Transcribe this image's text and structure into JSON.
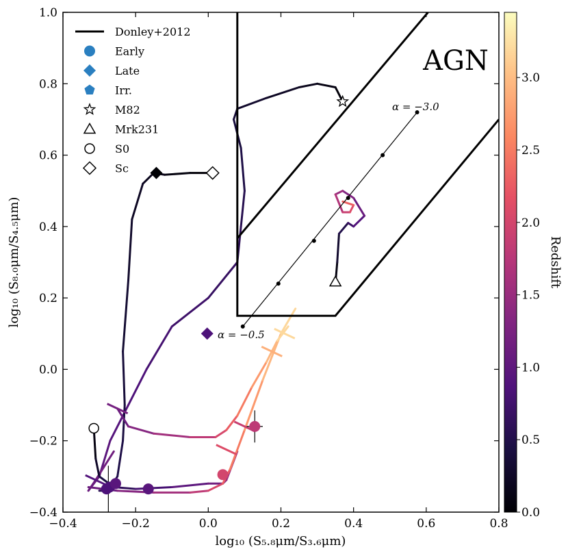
{
  "chart_data": {
    "type": "scatter",
    "xlabel": "log₁₀ (S₅.₈μm/S₃.₆μm)",
    "ylabel": "log₁₀ (S₈.₀μm/S₄.₅μm)",
    "xlim": [
      -0.4,
      0.8
    ],
    "ylim": [
      -0.4,
      1.0
    ],
    "xticks": [
      -0.4,
      -0.2,
      0.0,
      0.2,
      0.4,
      0.6,
      0.8
    ],
    "yticks": [
      -0.4,
      -0.2,
      0.0,
      0.2,
      0.4,
      0.6,
      0.8,
      1.0
    ],
    "xtick_labels": [
      "−0.4",
      "−0.2",
      "0.0",
      "0.2",
      "0.4",
      "0.6",
      "0.8"
    ],
    "ytick_labels": [
      "−0.4",
      "−0.2",
      "0.0",
      "0.2",
      "0.4",
      "0.6",
      "0.8",
      "1.0"
    ],
    "region_label": "AGN",
    "donley_wedge": [
      [
        0.08,
        1.0
      ],
      [
        0.08,
        0.367
      ],
      [
        0.08,
        0.15
      ],
      [
        0.35,
        0.15
      ],
      [
        0.8,
        0.7
      ]
    ],
    "donley_upper": [
      [
        0.08,
        0.367
      ],
      [
        0.605,
        1.0
      ]
    ],
    "colorbar": {
      "label": "Redshift",
      "min": 0.0,
      "max": 3.45,
      "ticks": [
        0.0,
        0.5,
        1.0,
        1.5,
        2.0,
        2.5,
        3.0
      ],
      "tick_labels": [
        "0.0",
        "0.5",
        "1.0",
        "1.5",
        "2.0",
        "2.5",
        "3.0"
      ]
    },
    "legend": [
      {
        "label": "Donley+2012",
        "marker": "line"
      },
      {
        "label": "Early",
        "marker": "circle-filled"
      },
      {
        "label": "Late",
        "marker": "diamond-filled"
      },
      {
        "label": "Irr.",
        "marker": "pentagon-filled"
      },
      {
        "label": "M82",
        "marker": "star-open"
      },
      {
        "label": "Mrk231",
        "marker": "triangle-open"
      },
      {
        "label": "S0",
        "marker": "circle-open"
      },
      {
        "label": "Sc",
        "marker": "diamond-open"
      }
    ],
    "powerlaw": {
      "x": [
        0.095,
        0.193,
        0.291,
        0.385,
        0.48,
        0.575
      ],
      "y": [
        0.12,
        0.24,
        0.36,
        0.48,
        0.6,
        0.72
      ],
      "labels": [
        "α = −0.5",
        "α = −3.0"
      ]
    },
    "tracks": [
      {
        "name": "M82",
        "x": [
          0.37,
          0.35,
          0.3,
          0.25,
          0.16,
          0.08,
          0.07,
          0.09,
          0.1,
          0.09,
          0.08,
          0.0,
          -0.1,
          -0.17,
          -0.22,
          -0.27,
          -0.3,
          -0.33,
          -0.31,
          -0.26
        ],
        "y": [
          0.75,
          0.79,
          0.8,
          0.79,
          0.76,
          0.73,
          0.7,
          0.62,
          0.5,
          0.4,
          0.3,
          0.2,
          0.12,
          0.0,
          -0.1,
          -0.2,
          -0.3,
          -0.34,
          -0.31,
          -0.23
        ],
        "z0": 0.0,
        "z1": 1.2
      },
      {
        "name": "Sc",
        "x": [
          0.01,
          -0.05,
          -0.12,
          -0.15,
          -0.18,
          -0.21,
          -0.22,
          -0.235,
          -0.23,
          -0.235,
          -0.25,
          -0.275,
          -0.3
        ],
        "y": [
          0.55,
          0.55,
          0.545,
          0.55,
          0.52,
          0.42,
          0.25,
          0.05,
          -0.1,
          -0.2,
          -0.3,
          -0.34,
          -0.34
        ],
        "z0": 0.0,
        "z1": 0.6
      },
      {
        "name": "S0",
        "x": [
          -0.315,
          -0.31,
          -0.3,
          -0.26,
          -0.2,
          -0.1,
          0.0,
          0.04,
          0.05,
          0.08
        ],
        "y": [
          -0.165,
          -0.25,
          -0.3,
          -0.33,
          -0.335,
          -0.33,
          -0.32,
          -0.32,
          -0.31,
          -0.23
        ],
        "z0": 0.0,
        "z1": 1.6
      },
      {
        "name": "Irr",
        "x": [
          -0.33,
          -0.25,
          -0.15,
          -0.05,
          0.0,
          0.04,
          0.06,
          0.1,
          0.15,
          0.2,
          0.24
        ],
        "y": [
          -0.33,
          -0.34,
          -0.345,
          -0.345,
          -0.34,
          -0.32,
          -0.28,
          -0.17,
          -0.03,
          0.1,
          0.17
        ],
        "z0": 1.0,
        "z1": 3.3
      },
      {
        "name": "Early",
        "x": [
          -0.25,
          -0.22,
          -0.15,
          -0.05,
          0.02,
          0.05,
          0.08,
          0.12,
          0.16,
          0.19,
          0.22
        ],
        "y": [
          -0.11,
          -0.16,
          -0.18,
          -0.19,
          -0.19,
          -0.17,
          -0.13,
          -0.05,
          0.02,
          0.08,
          0.12
        ],
        "z0": 1.0,
        "z1": 3.3
      },
      {
        "name": "Mrk231",
        "x": [
          0.35,
          0.355,
          0.36,
          0.385,
          0.4,
          0.43,
          0.4,
          0.37,
          0.35,
          0.37,
          0.39,
          0.4,
          0.37
        ],
        "y": [
          0.24,
          0.3,
          0.38,
          0.41,
          0.4,
          0.43,
          0.48,
          0.5,
          0.49,
          0.44,
          0.44,
          0.46,
          0.47
        ],
        "z0": 0.0,
        "z1": 2.4
      }
    ],
    "points": [
      {
        "name": "M82",
        "x": 0.37,
        "y": 0.75,
        "marker": "star-open"
      },
      {
        "name": "Mrk231",
        "x": 0.35,
        "y": 0.245,
        "marker": "triangle-open"
      },
      {
        "name": "S0",
        "x": -0.315,
        "y": -0.165,
        "marker": "circle-open"
      },
      {
        "name": "Sc",
        "x": 0.012,
        "y": 0.55,
        "marker": "diamond-open"
      },
      {
        "name": "Late z0",
        "x": -0.143,
        "y": 0.55,
        "marker": "diamond-filled",
        "z": 0.0
      },
      {
        "name": "Late z1",
        "x": -0.003,
        "y": 0.1,
        "marker": "diamond-filled",
        "z": 0.85
      },
      {
        "name": "Early",
        "x": -0.28,
        "y": -0.335,
        "marker": "circle-filled",
        "z": 0.85
      },
      {
        "name": "Early",
        "x": -0.272,
        "y": -0.33,
        "marker": "circle-filled",
        "z": 0.85
      },
      {
        "name": "Early",
        "x": -0.255,
        "y": -0.32,
        "marker": "circle-filled",
        "z": 0.95
      },
      {
        "name": "Early",
        "x": -0.165,
        "y": -0.335,
        "marker": "circle-filled",
        "z": 0.95
      },
      {
        "name": "Early",
        "x": 0.04,
        "y": -0.295,
        "marker": "circle-filled",
        "z": 2.0
      },
      {
        "name": "Early",
        "x": 0.128,
        "y": -0.16,
        "marker": "circle-filled",
        "z": 1.8
      }
    ],
    "errorbars": [
      {
        "x": -0.275,
        "y": -0.335,
        "xerr": 0.015,
        "yerr": 0.065
      },
      {
        "x": 0.128,
        "y": -0.16,
        "xerr": 0.022,
        "yerr": 0.045
      }
    ],
    "crosses": [
      {
        "x": -0.25,
        "y": -0.11,
        "z": 1.2
      },
      {
        "x": -0.31,
        "y": -0.31,
        "z": 0.9
      },
      {
        "x": 0.1,
        "y": -0.16,
        "z": 1.9
      },
      {
        "x": 0.05,
        "y": -0.225,
        "z": 2.1
      },
      {
        "x": 0.175,
        "y": 0.05,
        "z": 2.9
      },
      {
        "x": 0.21,
        "y": 0.1,
        "z": 3.2
      }
    ]
  }
}
